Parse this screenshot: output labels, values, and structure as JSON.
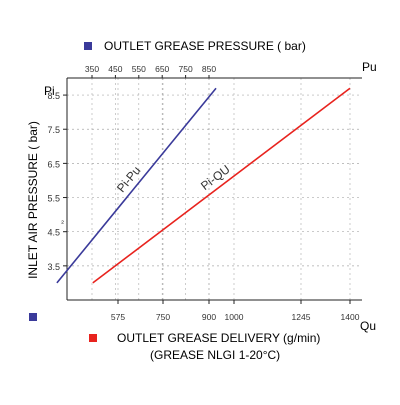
{
  "colors": {
    "pi_pu": "#3a3a9a",
    "pi_qu": "#e8231e",
    "axis": "#222222",
    "grid": "#aaaaaa",
    "top_marker": "#3a3a9a",
    "bottom_left_marker": "#3a3a9a",
    "bottom_marker": "#e8231e"
  },
  "chart_data": {
    "type": "line",
    "grid": true,
    "top_axis": {
      "label": "OUTLET GREASE PRESSURE ( bar)",
      "unit": "Pu",
      "ticks": [
        "350",
        "450",
        "550",
        "650",
        "750",
        "850"
      ]
    },
    "left_axis": {
      "label": "INLET AIR PRESSURE ( bar)",
      "unit": "Pi",
      "ticks": [
        "8.5",
        "7.5",
        "6.5",
        "5.5",
        "4.5",
        "3.5"
      ],
      "stray_tick_mark": "₂",
      "ylim": [
        2.5,
        9.0
      ]
    },
    "bottom_axis": {
      "label": "OUTLET GREASE DELIVERY (g/min)",
      "sublabel": "(GREASE NLGI 1-20°C)",
      "unit": "Qu",
      "ticks": [
        "575",
        "750",
        "900",
        "1000",
        "1245",
        "1400"
      ]
    },
    "series": [
      {
        "name": "Pi-Pu",
        "x_axis": "top",
        "x": [
          200,
          880
        ],
        "y": [
          3.0,
          8.7
        ]
      },
      {
        "name": "Pi-QU",
        "x_axis": "bottom",
        "x": [
          477,
          1400
        ],
        "y": [
          3.0,
          8.7
        ]
      }
    ]
  }
}
